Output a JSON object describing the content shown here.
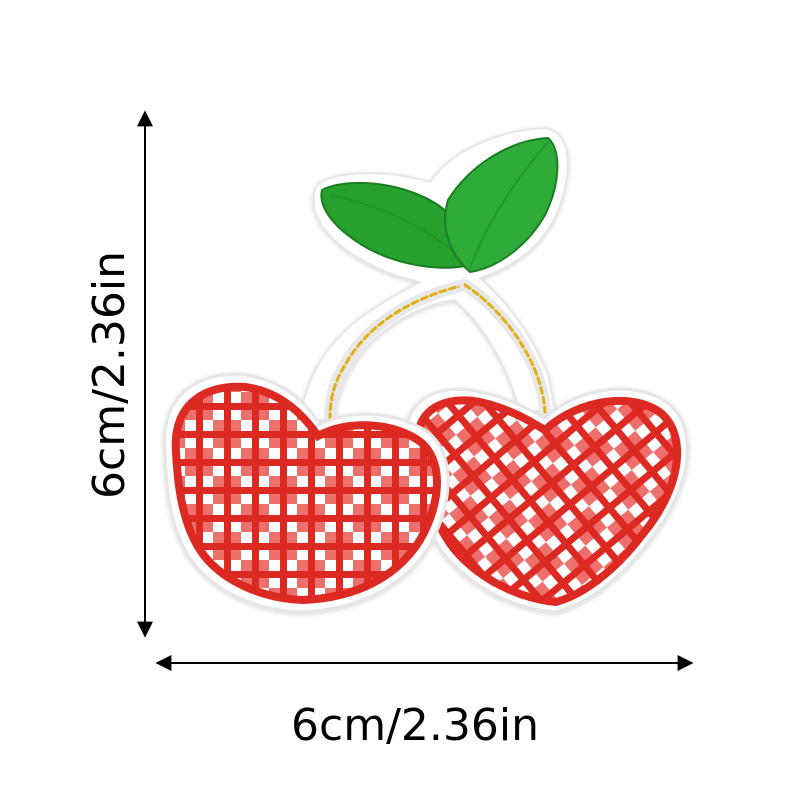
{
  "dimensions": {
    "width_label": "6cm/2.36in",
    "height_label": "6cm/2.36in"
  },
  "colors": {
    "background": "#ffffff",
    "arrow": "#000000",
    "patch_border": "#e8e8e8",
    "patch_fill": "#ffffff",
    "leaf_green": "#26a12f",
    "leaf_dark": "#1a7d22",
    "stem_yellow": "#e0b018",
    "cherry_red": "#dc2a24",
    "cherry_pink": "#ee6f6c",
    "check_white": "#ffffff"
  },
  "icons": [
    "double-headed-arrow-vertical",
    "double-headed-arrow-horizontal"
  ]
}
